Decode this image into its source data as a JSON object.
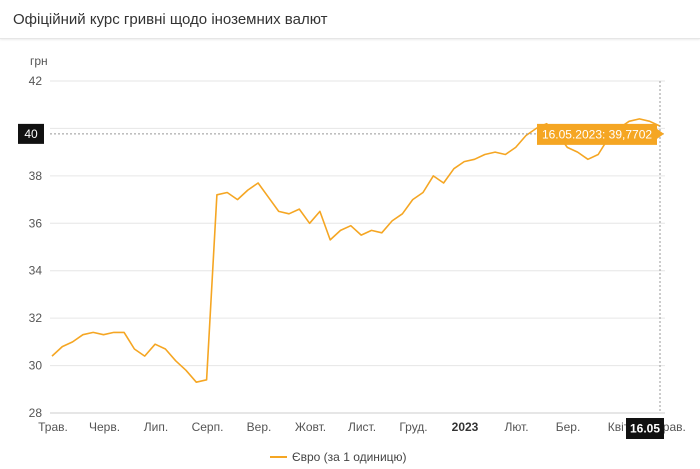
{
  "header": {
    "title": "Офіційний курс гривні щодо іноземних валют"
  },
  "chart_data": {
    "type": "line",
    "y_unit_label": "грн",
    "ylim": [
      28,
      42
    ],
    "y_ticks": [
      28,
      30,
      32,
      34,
      36,
      38,
      40,
      42
    ],
    "grid": "horizontal",
    "x_ticks": [
      {
        "label": "Трав.",
        "bold": false
      },
      {
        "label": "Черв.",
        "bold": false
      },
      {
        "label": "Лип.",
        "bold": false
      },
      {
        "label": "Серп.",
        "bold": false
      },
      {
        "label": "Вер.",
        "bold": false
      },
      {
        "label": "Жовт.",
        "bold": false
      },
      {
        "label": "Лист.",
        "bold": false
      },
      {
        "label": "Груд.",
        "bold": false
      },
      {
        "label": "2023",
        "bold": true
      },
      {
        "label": "Лют.",
        "bold": false
      },
      {
        "label": "Бер.",
        "bold": false
      },
      {
        "label": "Квіт.",
        "bold": false
      },
      {
        "label": "Трав.",
        "bold": false
      }
    ],
    "series": [
      {
        "name": "Євро (за 1 одиницю)",
        "color": "#f5a623",
        "values": [
          30.4,
          30.8,
          31.0,
          31.3,
          31.4,
          31.3,
          31.4,
          31.4,
          30.7,
          30.4,
          30.9,
          30.7,
          30.2,
          29.8,
          29.3,
          29.4,
          37.2,
          37.3,
          37.0,
          37.4,
          37.7,
          37.1,
          36.5,
          36.4,
          36.6,
          36.0,
          36.5,
          35.3,
          35.7,
          35.9,
          35.5,
          35.7,
          35.6,
          36.1,
          36.4,
          37.0,
          37.3,
          38.0,
          37.7,
          38.3,
          38.6,
          38.7,
          38.9,
          39.0,
          38.9,
          39.2,
          39.7,
          40.0,
          40.2,
          39.8,
          39.2,
          39.0,
          38.7,
          38.9,
          39.6,
          40.0,
          40.3,
          40.4,
          40.3,
          40.1
        ]
      }
    ],
    "crosshair": {
      "y_value_label": "40",
      "tooltip": "16.05.2023: 39,7702",
      "x_label": "16.05"
    },
    "legend_position": "bottom-center"
  }
}
